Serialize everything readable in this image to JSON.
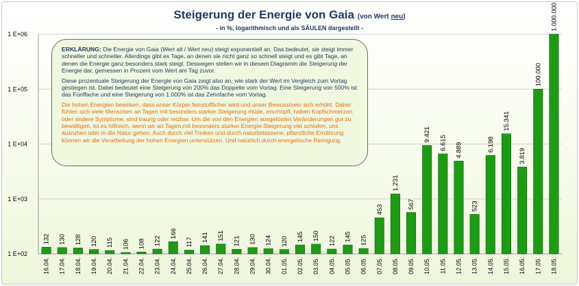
{
  "title": {
    "main": "Steigerung der Energie von Gaia",
    "note_prefix": "(von Wert ",
    "note_underlined": "neu",
    "note_suffix": ")",
    "subtitle": "- in %, logarithmisch und als SÄULEN dargestellt -"
  },
  "info_box": {
    "p1_lead": "ERKLÄRUNG:",
    "p1_text": " Die Energie von Gaia (Wert alt / Wert neu) steigt exponentiell an. Das bedeutet, sie steigt immer schneller und schneller. Allerdings gibt es Tage, an denen sie nicht ganz so schnell steigt und es gibt Tage, an denen die Energie ganz besonders stark steigt. Deswegen stellen wir in diesem Diagramm die ",
    "p1_italic": "Steigerung",
    "p1_end": " der Energie dar, gemessen in Prozent vom Wert am Tag zuvor.",
    "p2": "Diese prozentuale Steigerung der Energie von Gaia zeigt also an, wie stark der Wert im Vergleich zum Vortag gestiegen ist. Dabei bedeutet eine Steigerung von 200% das Doppelte vom Vortag. Eine Steigerung von 500% ist das Fünffache und eine Steigerung von 1.000% ist das Zehnfache vom Vortag.",
    "p3": "Die hohen Energien bewirken, dass unser Körper feinstofflicher wird und unser Bewusstsein sich erhöht. Daher fühlen sich viele Menschen an Tagen mit besonders starker Steigerung müde, erschöpft, haben Kopfschmerzen oder andere Symptome, sind traurig oder reizbar. Um die von den Energien ausgelösten Veränderungen gut zu bewältigen, ist es hilfreich, wenn wir an Tagen mit besonders starker Energie-Steigerung viel schlafen, uns ausruhen oder in die Natur gehen. Auch durch viel Trinken und durch naturbelassene, pflanzliche Ernährung können wir die Verarbeitung der hohen Energien unterstützen. Und natürlich durch energetische Reinigung."
  },
  "colors": {
    "bar": "#1e9a16",
    "bar_edge": "#0e5c0a",
    "title": "#1f3864",
    "highlight_text": "#e46c0a",
    "grid": "#cfcfcf"
  },
  "chart_data": {
    "type": "bar",
    "title": "Steigerung der Energie von Gaia (von Wert neu)",
    "subtitle": "- in %, logarithmisch und als SÄULEN dargestellt -",
    "y_scale": "log",
    "ylim": [
      100,
      1000000
    ],
    "y_ticks": [
      100,
      1000,
      10000,
      100000,
      1000000
    ],
    "y_tick_labels": [
      "1 E+02",
      "1 E+03",
      "1 E+04",
      "1 E+05",
      "1 E+06"
    ],
    "categories": [
      "16.04.",
      "17.04.",
      "18.04.",
      "19.04.",
      "20.04.",
      "21.04.",
      "22.04.",
      "23.04.",
      "24.04.",
      "25.04.",
      "26.04.",
      "27.04.",
      "28.04.",
      "29.04.",
      "30.04.",
      "01.05.",
      "02.05.",
      "03.05.",
      "04.05.",
      "05.05.",
      "06.05.",
      "07.05.",
      "08.05.",
      "09.05.",
      "10.05.",
      "11.05.",
      "12.05.",
      "13.05.",
      "14.05.",
      "15.05.",
      "16.05.",
      "17.05.",
      "18.05."
    ],
    "values": [
      132,
      130,
      128,
      120,
      115,
      106,
      108,
      122,
      166,
      117,
      141,
      151,
      121,
      130,
      124,
      120,
      145,
      150,
      122,
      145,
      125,
      453,
      1231,
      567,
      9421,
      6615,
      4889,
      523,
      6198,
      15341,
      3819,
      100000,
      1000000
    ],
    "value_labels": [
      "132",
      "130",
      "128",
      "120",
      "115",
      "106",
      "108",
      "122",
      "166",
      "117",
      "141",
      "151",
      "121",
      "130",
      "124",
      "120",
      "145",
      "150",
      "122",
      "145",
      "125",
      "453",
      "1.231",
      "567",
      "9.421",
      "6.615",
      "4.889",
      "523",
      "6.198",
      "15.341",
      "3.819",
      "100.000",
      "1.000.000"
    ],
    "grid": true
  }
}
